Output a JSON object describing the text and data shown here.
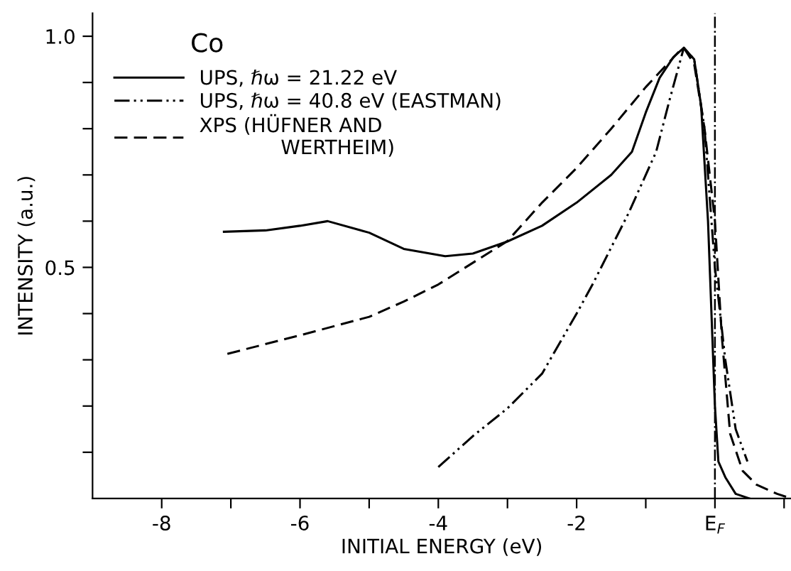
{
  "chart_data": {
    "type": "line",
    "xlabel": "INITIAL ENERGY (eV)",
    "ylabel": "INTENSITY (a.u.)",
    "annotations": [
      "Co"
    ],
    "xlim": [
      -9,
      1.1
    ],
    "ylim": [
      0,
      1.05
    ],
    "xticks": [
      -8,
      {
        "value": -7,
        "label": null
      },
      -6,
      {
        "value": -5,
        "label": null
      },
      -4,
      {
        "value": -3,
        "label": null
      },
      -2,
      {
        "value": -1,
        "label": null
      },
      {
        "value": 0,
        "label": "E$_{F}$"
      },
      {
        "value": 1,
        "label": null
      }
    ],
    "yticks": [
      {
        "value": 0.1,
        "label": null
      },
      {
        "value": 0.2,
        "label": null
      },
      {
        "value": 0.3,
        "label": null
      },
      {
        "value": 0.4,
        "label": null
      },
      {
        "value": 0.5,
        "label": "0.5"
      },
      {
        "value": 0.6,
        "label": null
      },
      {
        "value": 0.7,
        "label": null
      },
      {
        "value": 0.8,
        "label": null
      },
      {
        "value": 0.9,
        "label": null
      },
      {
        "value": 1.0,
        "label": "1.0"
      }
    ],
    "grid": false,
    "legend": "top left",
    "marker": "none",
    "ref_lines": [
      {
        "axis": "x",
        "value": 0,
        "color": "#000000",
        "line_style": "dashdot"
      }
    ],
    "series": [
      {
        "name": "UPS, ℏω = 21.22 eV",
        "color": "#000000",
        "line_style": "solid",
        "x": [
          -7.1,
          -6.5,
          -6.0,
          -5.6,
          -5.0,
          -4.5,
          -3.9,
          -3.5,
          -3.0,
          -2.5,
          -2.0,
          -1.5,
          -1.2,
          -1.0,
          -0.8,
          -0.6,
          -0.45,
          -0.3,
          -0.2,
          -0.1,
          0.0,
          0.05,
          0.15,
          0.3,
          0.5
        ],
        "values": [
          0.577,
          0.58,
          0.59,
          0.6,
          0.575,
          0.54,
          0.524,
          0.53,
          0.556,
          0.59,
          0.64,
          0.7,
          0.75,
          0.835,
          0.91,
          0.955,
          0.975,
          0.95,
          0.85,
          0.6,
          0.2,
          0.08,
          0.046,
          0.01,
          0.0
        ]
      },
      {
        "name": "UPS, ℏω = 40.8 eV (EASTMAN)",
        "color": "#000000",
        "line_style": "dashdotdot",
        "x": [
          -4.0,
          -3.5,
          -3.0,
          -2.5,
          -2.0,
          -1.77,
          -1.25,
          -0.85,
          -0.66,
          -0.45,
          -0.3,
          -0.15,
          0.0,
          0.15,
          0.3,
          0.47
        ],
        "values": [
          0.068,
          0.135,
          0.195,
          0.27,
          0.4,
          0.463,
          0.617,
          0.75,
          0.86,
          0.975,
          0.95,
          0.8,
          0.5,
          0.3,
          0.15,
          0.08
        ]
      },
      {
        "name": "XPS (HÜFNER AND\n             WERTHEIM)",
        "color": "#000000",
        "line_style": "dashed",
        "x": [
          -7.05,
          -6.0,
          -5.0,
          -4.5,
          -4.0,
          -3.0,
          -2.5,
          -2.0,
          -1.5,
          -1.0,
          -0.5,
          -0.45,
          -0.3,
          -0.15,
          0.0,
          0.1,
          0.22,
          0.4,
          0.6,
          0.9,
          1.1
        ],
        "values": [
          0.313,
          0.353,
          0.393,
          0.426,
          0.463,
          0.557,
          0.64,
          0.715,
          0.8,
          0.89,
          0.97,
          0.975,
          0.94,
          0.8,
          0.6,
          0.35,
          0.14,
          0.06,
          0.03,
          0.01,
          0.0
        ]
      }
    ]
  }
}
